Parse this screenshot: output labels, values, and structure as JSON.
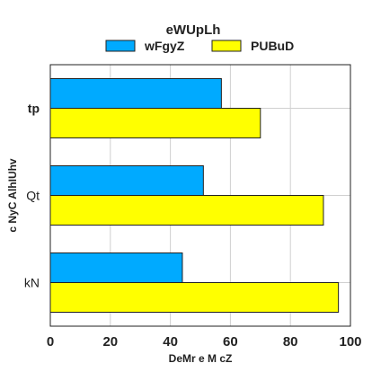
{
  "chart_data": {
    "type": "bar",
    "orientation": "horizontal",
    "legend": {
      "title": "eWUpLh",
      "placement": "top-center"
    },
    "xlabel": "DeMr e M cZ",
    "ylabel": "c NyC AlhIUhv",
    "categories": [
      "tp",
      "Qt",
      "kN"
    ],
    "series": [
      {
        "name": "wFgyZ",
        "color": "#00aaff",
        "values": [
          57,
          51,
          44
        ]
      },
      {
        "name": "PUBuD",
        "color": "#ffff00",
        "values": [
          70,
          91,
          96
        ]
      }
    ],
    "xlim": [
      0,
      100
    ],
    "xticks": [
      0,
      20,
      40,
      60,
      80,
      100
    ],
    "grid": true
  }
}
